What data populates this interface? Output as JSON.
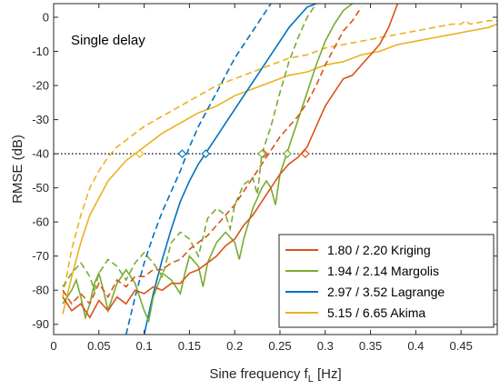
{
  "chart_data": {
    "type": "line",
    "annotation": "Single delay",
    "xlabel_main": "Sine frequency f",
    "xlabel_sub": "L",
    "xlabel_unit": " [Hz]",
    "ylabel": "RMSE (dB)",
    "xlim": [
      0,
      0.49
    ],
    "ylim": [
      -93,
      4
    ],
    "xticks": [
      0,
      0.05,
      0.1,
      0.15,
      0.2,
      0.25,
      0.3,
      0.35,
      0.4,
      0.45
    ],
    "xtick_labels": [
      "0",
      "0.05",
      "0.1",
      "0.15",
      "0.2",
      "0.25",
      "0.3",
      "0.35",
      "0.4",
      "0.45"
    ],
    "yticks": [
      0,
      -10,
      -20,
      -30,
      -40,
      -50,
      -60,
      -70,
      -80,
      -90
    ],
    "ytick_labels": [
      "0",
      "-10",
      "-20",
      "-30",
      "-40",
      "-50",
      "-60",
      "-70",
      "-80",
      "-90"
    ],
    "reference_line_y": -40,
    "legend_position": "bottom-right",
    "series": [
      {
        "name": "1.80 / 2.20 Kriging",
        "color": "#D95319",
        "solid": [
          [
            0.01,
            -82
          ],
          [
            0.02,
            -86
          ],
          [
            0.03,
            -84
          ],
          [
            0.04,
            -88
          ],
          [
            0.05,
            -83
          ],
          [
            0.06,
            -86
          ],
          [
            0.07,
            -82
          ],
          [
            0.08,
            -84
          ],
          [
            0.09,
            -80
          ],
          [
            0.1,
            -81
          ],
          [
            0.11,
            -79
          ],
          [
            0.12,
            -80
          ],
          [
            0.13,
            -78
          ],
          [
            0.14,
            -78
          ],
          [
            0.15,
            -75
          ],
          [
            0.16,
            -74
          ],
          [
            0.17,
            -72
          ],
          [
            0.18,
            -70
          ],
          [
            0.19,
            -67
          ],
          [
            0.2,
            -65
          ],
          [
            0.21,
            -61
          ],
          [
            0.22,
            -58
          ],
          [
            0.23,
            -54
          ],
          [
            0.24,
            -50
          ],
          [
            0.25,
            -46
          ],
          [
            0.26,
            -43
          ],
          [
            0.27,
            -41
          ],
          [
            0.28,
            -38
          ],
          [
            0.29,
            -32
          ],
          [
            0.3,
            -26
          ],
          [
            0.31,
            -22
          ],
          [
            0.32,
            -18
          ],
          [
            0.33,
            -17
          ],
          [
            0.34,
            -14
          ],
          [
            0.35,
            -11
          ],
          [
            0.36,
            -8
          ],
          [
            0.37,
            -3
          ],
          [
            0.38,
            4
          ]
        ],
        "dashed": [
          [
            0.01,
            -80
          ],
          [
            0.02,
            -84
          ],
          [
            0.03,
            -81
          ],
          [
            0.04,
            -84
          ],
          [
            0.05,
            -78
          ],
          [
            0.06,
            -82
          ],
          [
            0.07,
            -77
          ],
          [
            0.08,
            -79
          ],
          [
            0.09,
            -76
          ],
          [
            0.1,
            -76
          ],
          [
            0.11,
            -74
          ],
          [
            0.12,
            -74
          ],
          [
            0.13,
            -72
          ],
          [
            0.14,
            -71
          ],
          [
            0.15,
            -68
          ],
          [
            0.16,
            -66
          ],
          [
            0.17,
            -64
          ],
          [
            0.18,
            -61
          ],
          [
            0.19,
            -58
          ],
          [
            0.2,
            -55
          ],
          [
            0.21,
            -51
          ],
          [
            0.22,
            -47
          ],
          [
            0.23,
            -43
          ],
          [
            0.24,
            -39
          ],
          [
            0.25,
            -35
          ],
          [
            0.26,
            -32
          ],
          [
            0.27,
            -29
          ],
          [
            0.28,
            -25
          ],
          [
            0.29,
            -20
          ],
          [
            0.3,
            -14
          ],
          [
            0.31,
            -9
          ],
          [
            0.32,
            -4
          ],
          [
            0.33,
            -1
          ],
          [
            0.34,
            3
          ]
        ],
        "marker": [
          0.278,
          -40
        ]
      },
      {
        "name": "1.94 / 2.14 Margolis",
        "color": "#77AC30",
        "solid": [
          [
            0.01,
            -84
          ],
          [
            0.02,
            -80
          ],
          [
            0.025,
            -77
          ],
          [
            0.03,
            -82
          ],
          [
            0.035,
            -88
          ],
          [
            0.04,
            -84
          ],
          [
            0.045,
            -78
          ],
          [
            0.05,
            -75
          ],
          [
            0.055,
            -80
          ],
          [
            0.06,
            -86
          ],
          [
            0.07,
            -78
          ],
          [
            0.08,
            -74
          ],
          [
            0.09,
            -78
          ],
          [
            0.1,
            -86
          ],
          [
            0.105,
            -89
          ],
          [
            0.11,
            -82
          ],
          [
            0.12,
            -75
          ],
          [
            0.13,
            -77
          ],
          [
            0.14,
            -81
          ],
          [
            0.145,
            -75
          ],
          [
            0.15,
            -70
          ],
          [
            0.16,
            -73
          ],
          [
            0.165,
            -79
          ],
          [
            0.17,
            -72
          ],
          [
            0.18,
            -66
          ],
          [
            0.19,
            -63
          ],
          [
            0.2,
            -66
          ],
          [
            0.205,
            -71
          ],
          [
            0.21,
            -65
          ],
          [
            0.22,
            -56
          ],
          [
            0.23,
            -50
          ],
          [
            0.235,
            -48
          ],
          [
            0.24,
            -50
          ],
          [
            0.245,
            -55
          ],
          [
            0.25,
            -46
          ],
          [
            0.26,
            -38
          ],
          [
            0.27,
            -30
          ],
          [
            0.28,
            -22
          ],
          [
            0.29,
            -14
          ],
          [
            0.3,
            -7
          ],
          [
            0.31,
            -2
          ],
          [
            0.32,
            2
          ],
          [
            0.33,
            4
          ]
        ],
        "dashed": [
          [
            0.01,
            -79
          ],
          [
            0.02,
            -75
          ],
          [
            0.03,
            -72
          ],
          [
            0.04,
            -76
          ],
          [
            0.045,
            -80
          ],
          [
            0.05,
            -75
          ],
          [
            0.06,
            -71
          ],
          [
            0.07,
            -73
          ],
          [
            0.08,
            -77
          ],
          [
            0.09,
            -72
          ],
          [
            0.1,
            -69
          ],
          [
            0.11,
            -72
          ],
          [
            0.12,
            -76
          ],
          [
            0.13,
            -66
          ],
          [
            0.14,
            -63
          ],
          [
            0.15,
            -65
          ],
          [
            0.16,
            -70
          ],
          [
            0.17,
            -59
          ],
          [
            0.18,
            -56
          ],
          [
            0.19,
            -58
          ],
          [
            0.195,
            -62
          ],
          [
            0.2,
            -55
          ],
          [
            0.21,
            -49
          ],
          [
            0.22,
            -47
          ],
          [
            0.225,
            -52
          ],
          [
            0.23,
            -40
          ],
          [
            0.24,
            -32
          ],
          [
            0.25,
            -22
          ],
          [
            0.26,
            -13
          ],
          [
            0.27,
            -6
          ],
          [
            0.28,
            0
          ],
          [
            0.29,
            4
          ]
        ],
        "marker": [
          0.258,
          -40
        ]
      },
      {
        "name": "2.97 / 3.52 Lagrange",
        "color": "#0072BD",
        "solid": [
          [
            0.1,
            -93
          ],
          [
            0.11,
            -81
          ],
          [
            0.12,
            -71
          ],
          [
            0.13,
            -62
          ],
          [
            0.14,
            -54
          ],
          [
            0.15,
            -48
          ],
          [
            0.16,
            -43
          ],
          [
            0.17,
            -39
          ],
          [
            0.18,
            -35
          ],
          [
            0.19,
            -31
          ],
          [
            0.2,
            -27
          ],
          [
            0.21,
            -23
          ],
          [
            0.22,
            -19
          ],
          [
            0.23,
            -15
          ],
          [
            0.24,
            -11
          ],
          [
            0.25,
            -7
          ],
          [
            0.26,
            -3
          ],
          [
            0.27,
            0
          ],
          [
            0.28,
            3
          ],
          [
            0.29,
            4
          ]
        ],
        "dashed": [
          [
            0.08,
            -93
          ],
          [
            0.09,
            -82
          ],
          [
            0.1,
            -72
          ],
          [
            0.11,
            -64
          ],
          [
            0.12,
            -57
          ],
          [
            0.13,
            -51
          ],
          [
            0.14,
            -45
          ],
          [
            0.15,
            -38
          ],
          [
            0.16,
            -32
          ],
          [
            0.17,
            -27
          ],
          [
            0.18,
            -22
          ],
          [
            0.19,
            -17
          ],
          [
            0.2,
            -12
          ],
          [
            0.21,
            -8
          ],
          [
            0.22,
            -4
          ],
          [
            0.23,
            0
          ],
          [
            0.24,
            4
          ]
        ],
        "marker": [
          0.168,
          -40
        ]
      },
      {
        "name": "5.15 / 6.65 Akima",
        "color": "#EDB120",
        "solid": [
          [
            0.01,
            -87
          ],
          [
            0.02,
            -76
          ],
          [
            0.03,
            -66
          ],
          [
            0.04,
            -58
          ],
          [
            0.05,
            -53
          ],
          [
            0.06,
            -48
          ],
          [
            0.07,
            -45
          ],
          [
            0.08,
            -42
          ],
          [
            0.09,
            -40
          ],
          [
            0.1,
            -38
          ],
          [
            0.12,
            -34
          ],
          [
            0.14,
            -31
          ],
          [
            0.16,
            -28
          ],
          [
            0.18,
            -26
          ],
          [
            0.2,
            -23
          ],
          [
            0.22,
            -21
          ],
          [
            0.24,
            -19
          ],
          [
            0.26,
            -17
          ],
          [
            0.28,
            -16
          ],
          [
            0.3,
            -14
          ],
          [
            0.32,
            -13
          ],
          [
            0.34,
            -11
          ],
          [
            0.36,
            -10
          ],
          [
            0.38,
            -8
          ],
          [
            0.4,
            -7
          ],
          [
            0.42,
            -6
          ],
          [
            0.44,
            -5
          ],
          [
            0.46,
            -4
          ],
          [
            0.48,
            -3
          ],
          [
            0.49,
            -2
          ]
        ],
        "dashed": [
          [
            0.01,
            -82
          ],
          [
            0.02,
            -68
          ],
          [
            0.03,
            -58
          ],
          [
            0.04,
            -50
          ],
          [
            0.05,
            -45
          ],
          [
            0.06,
            -41
          ],
          [
            0.07,
            -38
          ],
          [
            0.08,
            -36
          ],
          [
            0.09,
            -34
          ],
          [
            0.1,
            -32
          ],
          [
            0.12,
            -29
          ],
          [
            0.14,
            -26
          ],
          [
            0.16,
            -23
          ],
          [
            0.18,
            -20
          ],
          [
            0.2,
            -18
          ],
          [
            0.22,
            -16
          ],
          [
            0.24,
            -14
          ],
          [
            0.26,
            -12
          ],
          [
            0.28,
            -11
          ],
          [
            0.3,
            -9
          ],
          [
            0.32,
            -8
          ],
          [
            0.34,
            -7
          ],
          [
            0.36,
            -6
          ],
          [
            0.38,
            -5
          ],
          [
            0.4,
            -4
          ],
          [
            0.42,
            -3
          ],
          [
            0.44,
            -2
          ],
          [
            0.45,
            -2
          ],
          [
            0.455,
            -1
          ],
          [
            0.46,
            -2
          ],
          [
            0.48,
            -1
          ],
          [
            0.49,
            -1
          ]
        ],
        "marker": [
          0.095,
          -40
        ]
      }
    ],
    "extra_markers": [
      {
        "series": 2,
        "point": [
          0.142,
          -40
        ]
      },
      {
        "series": 0,
        "point": [
          0.232,
          -40
        ]
      },
      {
        "series": 1,
        "point": [
          0.23,
          -40
        ]
      }
    ]
  }
}
